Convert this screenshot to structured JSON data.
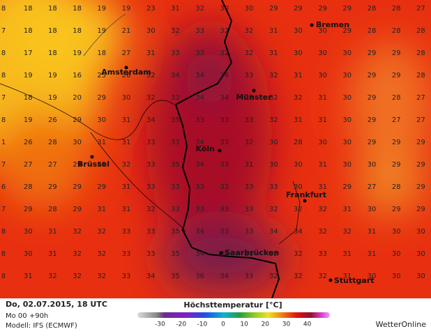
{
  "map": {
    "grid": [
      [
        8,
        18,
        18,
        18,
        19,
        19,
        23,
        31,
        32,
        30,
        30,
        29,
        29,
        29,
        29,
        28,
        28,
        27
      ],
      [
        7,
        18,
        18,
        18,
        19,
        21,
        30,
        32,
        33,
        32,
        32,
        31,
        30,
        30,
        29,
        28,
        28,
        28
      ],
      [
        8,
        17,
        18,
        19,
        18,
        27,
        31,
        33,
        33,
        32,
        32,
        31,
        30,
        30,
        30,
        29,
        29,
        28
      ],
      [
        8,
        19,
        19,
        16,
        25,
        26,
        32,
        34,
        34,
        34,
        33,
        32,
        31,
        30,
        30,
        29,
        29,
        28
      ],
      [
        7,
        18,
        19,
        20,
        29,
        30,
        32,
        33,
        34,
        34,
        33,
        32,
        32,
        31,
        30,
        29,
        28,
        27
      ],
      [
        8,
        19,
        26,
        29,
        30,
        31,
        34,
        35,
        33,
        33,
        33,
        32,
        31,
        31,
        30,
        29,
        27,
        27
      ],
      [
        1,
        26,
        28,
        30,
        31,
        31,
        33,
        33,
        34,
        33,
        32,
        30,
        28,
        30,
        30,
        29,
        29,
        29
      ],
      [
        7,
        27,
        27,
        29,
        29,
        32,
        33,
        35,
        34,
        33,
        31,
        30,
        30,
        31,
        30,
        30,
        29,
        29
      ],
      [
        6,
        28,
        29,
        29,
        29,
        31,
        33,
        33,
        33,
        33,
        33,
        33,
        30,
        31,
        29,
        27,
        28,
        29
      ],
      [
        7,
        29,
        28,
        29,
        31,
        31,
        32,
        33,
        33,
        33,
        33,
        32,
        32,
        32,
        31,
        30,
        29,
        29
      ],
      [
        8,
        30,
        31,
        32,
        32,
        33,
        33,
        35,
        34,
        33,
        33,
        34,
        34,
        32,
        32,
        31,
        30,
        30
      ],
      [
        8,
        30,
        31,
        32,
        32,
        33,
        33,
        35,
        34,
        34,
        33,
        32,
        32,
        33,
        31,
        31,
        30,
        30
      ],
      [
        8,
        31,
        32,
        32,
        32,
        33,
        34,
        35,
        36,
        34,
        33,
        32,
        32,
        32,
        31,
        30,
        30,
        30
      ]
    ],
    "cities": [
      "Bremen",
      "Amsterdam",
      "Münster",
      "Köln",
      "Brüssel",
      "Frankfurt",
      "Saarbrücken",
      "Stuttgart"
    ]
  },
  "footer": {
    "date": "Do, 02.07.2015, 18 UTC",
    "run": "Mo 00 +90h",
    "model": "Modell: IFS (ECMWF)",
    "legend_title": "Höchsttemperatur [°C]",
    "legend_ticks": [
      -30,
      -20,
      -10,
      0,
      10,
      20,
      30,
      40
    ],
    "brand": "WetterOnline"
  }
}
